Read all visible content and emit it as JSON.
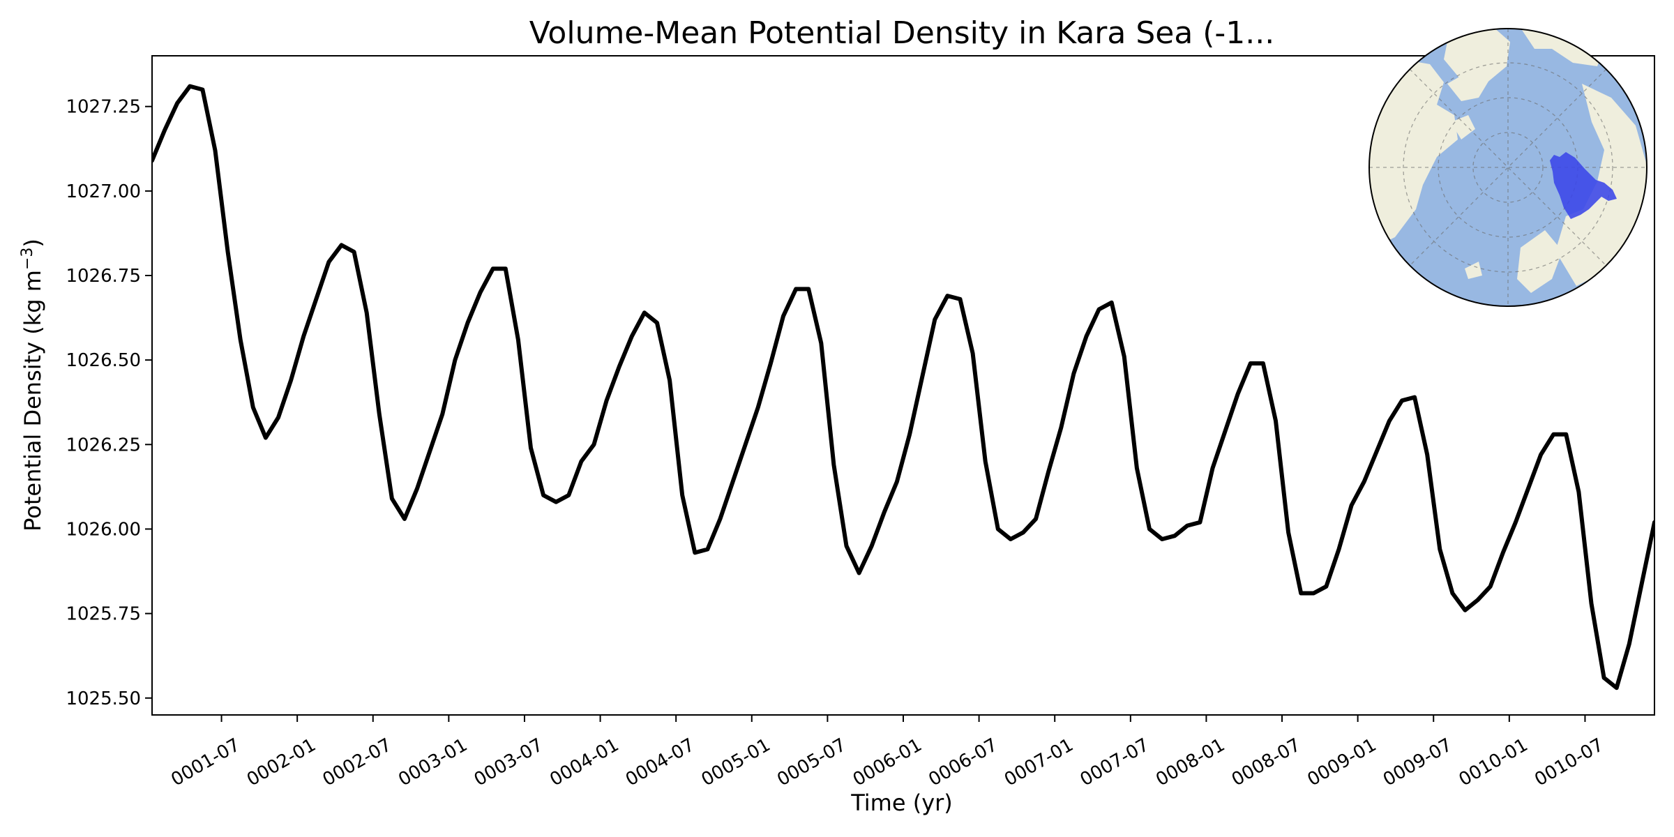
{
  "chart_data": {
    "type": "line",
    "title": "Volume-Mean Potential Density in Kara Sea (-1...",
    "xlabel": "Time (yr)",
    "ylabel_main": "Potential Density (kg m",
    "ylabel_sup": "−3",
    "ylabel_close": ")",
    "ylim": [
      1025.45,
      1027.4
    ],
    "yticks": [
      "1025.50",
      "1025.75",
      "1026.00",
      "1026.25",
      "1026.50",
      "1026.75",
      "1027.00",
      "1027.25"
    ],
    "ytick_values": [
      1025.5,
      1025.75,
      1026.0,
      1026.25,
      1026.5,
      1026.75,
      1027.0,
      1027.25
    ],
    "xlim_months": [
      0,
      119
    ],
    "xticks": [
      "0001-07",
      "0002-01",
      "0002-07",
      "0003-01",
      "0003-07",
      "0004-01",
      "0004-07",
      "0005-01",
      "0005-07",
      "0006-01",
      "0006-07",
      "0007-01",
      "0007-07",
      "0008-01",
      "0008-07",
      "0009-01",
      "0009-07",
      "0010-01",
      "0010-07"
    ],
    "xtick_months": [
      5.5,
      11.5,
      17.5,
      23.5,
      29.5,
      35.5,
      41.5,
      47.5,
      53.5,
      59.5,
      65.5,
      71.5,
      77.5,
      83.5,
      89.5,
      95.5,
      101.5,
      107.5,
      113.5
    ],
    "series": [
      {
        "color": "#000000",
        "values": [
          1027.09,
          1027.18,
          1027.26,
          1027.31,
          1027.3,
          1027.12,
          1026.82,
          1026.56,
          1026.36,
          1026.27,
          1026.33,
          1026.44,
          1026.57,
          1026.68,
          1026.79,
          1026.84,
          1026.82,
          1026.64,
          1026.34,
          1026.09,
          1026.03,
          1026.12,
          1026.23,
          1026.34,
          1026.5,
          1026.61,
          1026.7,
          1026.77,
          1026.77,
          1026.56,
          1026.24,
          1026.1,
          1026.08,
          1026.1,
          1026.2,
          1026.25,
          1026.38,
          1026.48,
          1026.57,
          1026.64,
          1026.61,
          1026.44,
          1026.1,
          1025.93,
          1025.94,
          1026.03,
          1026.14,
          1026.25,
          1026.36,
          1026.49,
          1026.63,
          1026.71,
          1026.71,
          1026.55,
          1026.19,
          1025.95,
          1025.87,
          1025.95,
          1026.05,
          1026.14,
          1026.28,
          1026.45,
          1026.62,
          1026.69,
          1026.68,
          1026.52,
          1026.2,
          1026.0,
          1025.97,
          1025.99,
          1026.03,
          1026.17,
          1026.3,
          1026.46,
          1026.57,
          1026.65,
          1026.67,
          1026.51,
          1026.18,
          1026.0,
          1025.97,
          1025.98,
          1026.01,
          1026.02,
          1026.18,
          1026.29,
          1026.4,
          1026.49,
          1026.49,
          1026.32,
          1025.99,
          1025.81,
          1025.81,
          1025.83,
          1025.94,
          1026.07,
          1026.14,
          1026.23,
          1026.32,
          1026.38,
          1026.39,
          1026.22,
          1025.94,
          1025.81,
          1025.76,
          1025.79,
          1025.83,
          1025.93,
          1026.02,
          1026.12,
          1026.22,
          1026.28,
          1026.28,
          1026.11,
          1025.78,
          1025.56,
          1025.53,
          1025.66,
          1025.84,
          1026.02
        ]
      }
    ],
    "grid": false,
    "inset": {
      "type": "map",
      "projection": "north-polar-stereographic",
      "ocean_color": "#98b8e2",
      "land_color": "#efeedd",
      "region_color": "#3a46e8"
    }
  }
}
